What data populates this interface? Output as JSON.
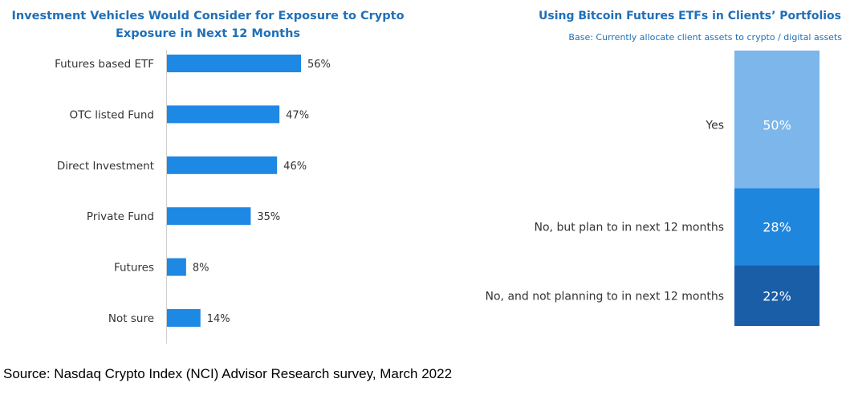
{
  "chart_data": [
    {
      "type": "bar",
      "orientation": "horizontal",
      "title": [
        "Investment Vehicles Would Consider for Exposure to Crypto",
        "Exposure in Next 12 Months"
      ],
      "categories": [
        "Futures based ETF",
        "OTC listed Fund",
        "Direct Investment",
        "Private Fund",
        "Futures",
        "Not sure"
      ],
      "values": [
        56,
        47,
        46,
        35,
        8,
        14
      ],
      "value_labels": [
        "56%",
        "47%",
        "46%",
        "35%",
        "8%",
        "14%"
      ],
      "xlim": [
        0,
        100
      ],
      "grid": false,
      "bar_color": "#1e88e5"
    },
    {
      "type": "bar",
      "orientation": "stacked-vertical",
      "title": "Using Bitcoin Futures ETFs in Clients’ Portfolios",
      "subtitle": "Base: Currently allocate client assets to crypto / digital assets",
      "categories": [
        "Yes",
        "No, but plan to in next 12 months",
        "No, and not planning to in next 12 months"
      ],
      "values": [
        50,
        28,
        22
      ],
      "value_labels": [
        "50%",
        "28%",
        "22%"
      ],
      "colors": [
        "#7cb6ea",
        "#1f86dd",
        "#1a5ea8"
      ],
      "ylim": [
        0,
        100
      ]
    }
  ],
  "source": "Source: Nasdaq Crypto Index (NCI) Advisor Research survey, March 2022"
}
